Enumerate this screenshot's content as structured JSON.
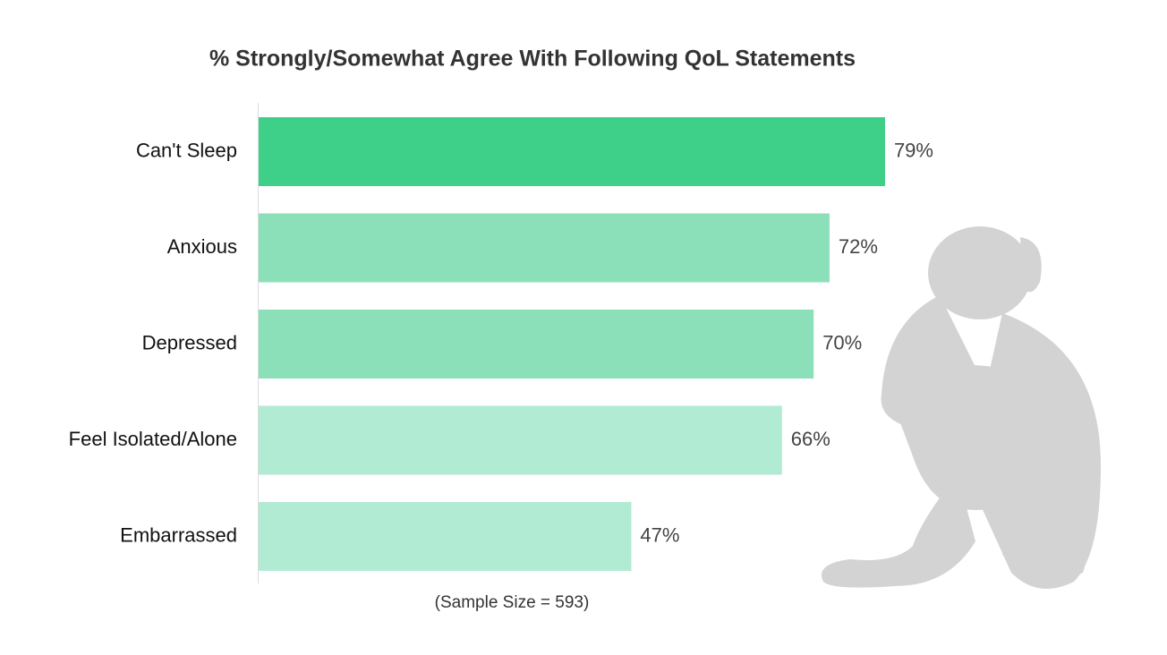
{
  "chart_data": {
    "type": "hbar",
    "title": "% Strongly/Somewhat Agree With Following QoL Statements",
    "categories": [
      "Can't Sleep",
      "Anxious",
      "Depressed",
      "Feel Isolated/Alone",
      "Embarrassed"
    ],
    "values": [
      79,
      72,
      70,
      66,
      47
    ],
    "value_labels": [
      "79%",
      "72%",
      "70%",
      "66%",
      "47%"
    ],
    "colors": [
      "#3ecf88",
      "#8be0ba",
      "#8be0ba",
      "#b1ebd3",
      "#b1ebd3"
    ],
    "note": "(Sample Size = 593)"
  }
}
